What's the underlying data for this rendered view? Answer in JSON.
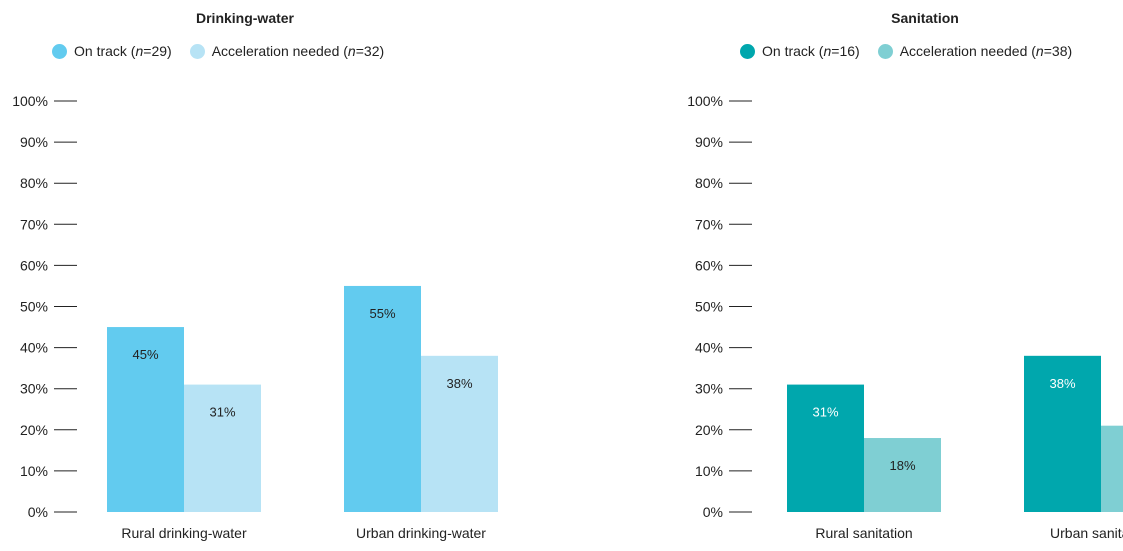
{
  "chart_data": [
    {
      "type": "bar",
      "title": "Drinking-water",
      "categories": [
        "Rural drinking-water",
        "Urban drinking-water"
      ],
      "series": [
        {
          "name": "On track",
          "n": 29,
          "color": "#62cbef",
          "label_color": "#222222",
          "values": [
            45,
            55
          ],
          "value_labels": [
            "45%",
            "55%"
          ]
        },
        {
          "name": "Acceleration needed",
          "n": 32,
          "color": "#b7e3f5",
          "label_color": "#222222",
          "values": [
            31,
            38
          ],
          "value_labels": [
            "31%",
            "38%"
          ]
        }
      ],
      "yticks": [
        "0%",
        "10%",
        "20%",
        "30%",
        "40%",
        "50%",
        "60%",
        "70%",
        "80%",
        "90%",
        "100%"
      ],
      "ylim": [
        0,
        100
      ],
      "xlabel": "",
      "ylabel": "",
      "grid": false,
      "legend_position": "top-left"
    },
    {
      "type": "bar",
      "title": "Sanitation",
      "categories": [
        "Rural sanitation",
        "Urban sanitation"
      ],
      "series": [
        {
          "name": "On track",
          "n": 16,
          "color": "#00a7ad",
          "label_color": "#ffffff",
          "values": [
            31,
            38
          ],
          "value_labels": [
            "31%",
            "38%"
          ]
        },
        {
          "name": "Acceleration needed",
          "n": 38,
          "color": "#7fcfd3",
          "label_color": "#222222",
          "values": [
            18,
            21
          ],
          "value_labels": [
            "18%",
            ""
          ]
        }
      ],
      "yticks": [
        "0%",
        "10%",
        "20%",
        "30%",
        "40%",
        "50%",
        "60%",
        "70%",
        "80%",
        "90%",
        "100%"
      ],
      "ylim": [
        0,
        100
      ],
      "xlabel": "",
      "ylabel": "",
      "grid": false,
      "legend_position": "top-right"
    }
  ],
  "legend_text": {
    "n_symbol": "n",
    "equals": " = "
  }
}
